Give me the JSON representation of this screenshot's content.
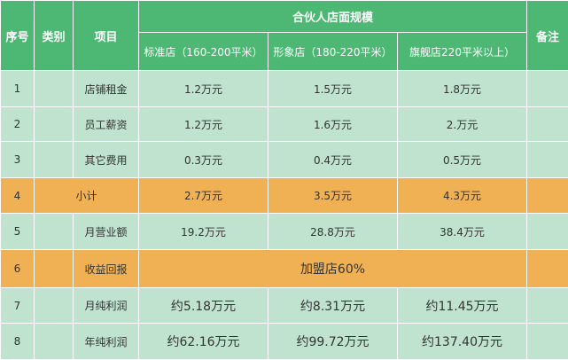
{
  "colors": {
    "header_bg": "#4cb873",
    "row_green": "#bfe3cf",
    "row_orange": "#f0b154",
    "header_text": "#ffffff"
  },
  "header": {
    "seq": "序号",
    "category": "类别",
    "item": "项目",
    "group": "合伙人店面规模",
    "note": "备注",
    "sub": [
      "标准店（160-200平米）",
      "形象店（180-220平米）",
      "旗舰店220平米以上）"
    ]
  },
  "rows": [
    {
      "seq": "1",
      "category": "",
      "item": "店铺租金",
      "v": [
        "1.2万元",
        "1.5万元",
        "1.8万元"
      ],
      "note": ""
    },
    {
      "seq": "2",
      "category": "",
      "item": "员工薪资",
      "v": [
        "1.2万元",
        "1.6万元",
        "2.万元"
      ],
      "note": ""
    },
    {
      "seq": "3",
      "category": "",
      "item": "其它费用",
      "v": [
        "0.3万元",
        "0.4万元",
        "0.5万元"
      ],
      "note": ""
    },
    {
      "seq": "4",
      "item": "小计",
      "v": [
        "2.7万元",
        "3.5万元",
        "4.3万元"
      ],
      "note": ""
    },
    {
      "seq": "5",
      "category": "",
      "item": "月营业额",
      "v": [
        "19.2万元",
        "28.8万元",
        "38.4万元"
      ],
      "note": ""
    },
    {
      "seq": "6",
      "category": "",
      "item": "收益回报",
      "merged": "加盟店60%",
      "note": ""
    },
    {
      "seq": "7",
      "category": "",
      "item": "月纯利润",
      "v": [
        "约5.18万元",
        "约8.31万元",
        "约11.45万元"
      ],
      "note": ""
    },
    {
      "seq": "8",
      "category": "",
      "item": "年纯利润",
      "v": [
        "约62.16万元",
        "约99.72万元",
        "约137.40万元"
      ],
      "note": ""
    }
  ]
}
